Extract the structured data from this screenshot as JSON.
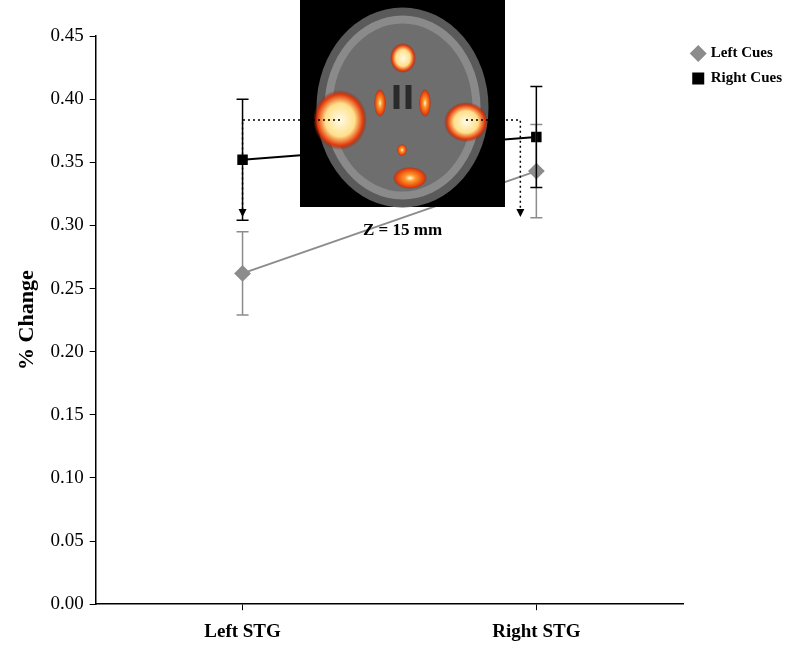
{
  "chart_data": {
    "type": "line",
    "y_label": "% Change",
    "annotation": "Z = 15 mm",
    "categories": [
      "Left STG",
      "Right STG"
    ],
    "series": [
      {
        "name": "Left Cues",
        "color": "#8c8c8c",
        "marker": "diamond",
        "values": [
          0.262,
          0.343
        ],
        "errors": [
          0.033,
          0.037
        ]
      },
      {
        "name": "Right Cues",
        "color": "#000000",
        "marker": "square",
        "values": [
          0.352,
          0.37
        ],
        "errors": [
          0.048,
          0.04
        ]
      }
    ],
    "ylim": [
      0,
      0.45
    ],
    "yticks": [
      {
        "value": 0,
        "label": "0.00"
      },
      {
        "value": 0.05,
        "label": "0.05"
      },
      {
        "value": 0.1,
        "label": "0.10"
      },
      {
        "value": 0.15,
        "label": "0.15"
      },
      {
        "value": 0.2,
        "label": "0.20"
      },
      {
        "value": 0.25,
        "label": "0.25"
      },
      {
        "value": 0.3,
        "label": "0.30"
      },
      {
        "value": 0.35,
        "label": "0.35"
      },
      {
        "value": 0.4,
        "label": "0.40"
      },
      {
        "value": 0.45,
        "label": "0.45"
      }
    ],
    "grid": false,
    "legend": "upper right"
  }
}
